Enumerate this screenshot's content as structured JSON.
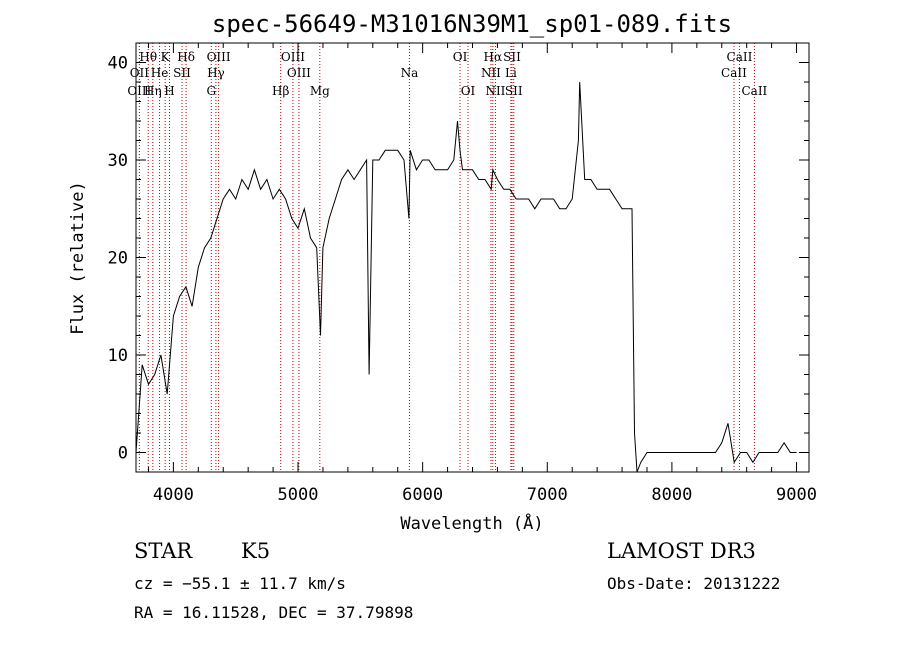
{
  "chart_data": {
    "type": "line",
    "title": "spec-56649-M31016N39M1_sp01-089.fits",
    "xlabel": "Wavelength (Å)",
    "ylabel": "Flux (relative)",
    "xlim": [
      3700,
      9100
    ],
    "ylim": [
      -2,
      42
    ],
    "xticks": [
      4000,
      5000,
      6000,
      7000,
      8000,
      9000
    ],
    "yticks": [
      0,
      10,
      20,
      30,
      40
    ],
    "line_color": "#000000",
    "marker_color": "#c00000",
    "series": [
      {
        "x": [
          3700,
          3750,
          3800,
          3850,
          3900,
          3950,
          4000,
          4050,
          4100,
          4150,
          4200,
          4250,
          4300,
          4350,
          4400,
          4450,
          4500,
          4550,
          4600,
          4650,
          4700,
          4750,
          4800,
          4850,
          4900,
          4950,
          5000,
          5050,
          5100,
          5150,
          5180,
          5200,
          5250,
          5300,
          5350,
          5400,
          5450,
          5500,
          5550,
          5570,
          5600,
          5650,
          5700,
          5750,
          5800,
          5850,
          5890,
          5900,
          5950,
          6000,
          6050,
          6100,
          6150,
          6200,
          6250,
          6280,
          6300,
          6320,
          6350,
          6400,
          6450,
          6500,
          6550,
          6563,
          6600,
          6650,
          6700,
          6750,
          6800,
          6850,
          6900,
          6950,
          7000,
          7050,
          7100,
          7150,
          7200,
          7250,
          7260,
          7300,
          7350,
          7400,
          7450,
          7500,
          7550,
          7600,
          7650,
          7680,
          7700,
          7720,
          7750,
          7800,
          7850,
          7900,
          7950,
          8000,
          8050,
          8100,
          8150,
          8200,
          8250,
          8300,
          8350,
          8400,
          8450,
          8500,
          8550,
          8600,
          8650,
          8700,
          8750,
          8800,
          8850,
          8900,
          8950,
          9000
        ],
        "y": [
          0,
          9,
          7,
          8,
          10,
          6,
          14,
          16,
          17,
          15,
          19,
          21,
          22,
          24,
          26,
          27,
          26,
          28,
          27,
          29,
          27,
          28,
          26,
          27,
          26,
          24,
          23,
          25,
          22,
          21,
          12,
          21,
          24,
          26,
          28,
          29,
          28,
          29,
          30,
          8,
          30,
          30,
          31,
          31,
          31,
          30,
          24,
          31,
          29,
          30,
          30,
          29,
          29,
          29,
          30,
          34,
          31,
          29,
          29,
          29,
          28,
          28,
          27,
          29,
          28,
          27,
          27,
          26,
          26,
          26,
          25,
          26,
          26,
          26,
          25,
          25,
          26,
          32,
          38,
          28,
          28,
          27,
          27,
          27,
          26,
          25,
          25,
          25,
          2,
          -2,
          -1,
          0,
          0,
          0,
          0,
          0,
          0,
          0,
          0,
          0,
          0,
          0,
          0,
          1,
          3,
          -1,
          0,
          0,
          -1,
          0,
          0,
          0,
          0,
          1,
          0,
          0
        ]
      }
    ],
    "spectral_lines": [
      {
        "name": "Hθ",
        "wl": 3798,
        "row": 0
      },
      {
        "name": "OII",
        "wl": 3727,
        "row": 1
      },
      {
        "name": "OIII",
        "wl": 3727,
        "row": 2
      },
      {
        "name": "K",
        "wl": 3934,
        "row": 0
      },
      {
        "name": "Hη",
        "wl": 3835,
        "row": 2
      },
      {
        "name": "He",
        "wl": 3889,
        "row": 1
      },
      {
        "name": "H",
        "wl": 3969,
        "row": 2
      },
      {
        "name": "SII",
        "wl": 4069,
        "row": 1
      },
      {
        "name": "Hδ",
        "wl": 4102,
        "row": 0
      },
      {
        "name": "OIII",
        "wl": 4363,
        "row": 0
      },
      {
        "name": "Hγ",
        "wl": 4341,
        "row": 1
      },
      {
        "name": "G",
        "wl": 4304,
        "row": 2
      },
      {
        "name": "Hβ",
        "wl": 4861,
        "row": 2
      },
      {
        "name": "OIII",
        "wl": 4959,
        "row": 0
      },
      {
        "name": "OIII",
        "wl": 5007,
        "row": 1
      },
      {
        "name": "Mg",
        "wl": 5175,
        "row": 2
      },
      {
        "name": "Na",
        "wl": 5894,
        "row": 1
      },
      {
        "name": "OI",
        "wl": 6300,
        "row": 0
      },
      {
        "name": "OI",
        "wl": 6364,
        "row": 2
      },
      {
        "name": "Hα",
        "wl": 6563,
        "row": 0
      },
      {
        "name": "SII",
        "wl": 6717,
        "row": 0
      },
      {
        "name": "NII",
        "wl": 6548,
        "row": 1
      },
      {
        "name": "Li",
        "wl": 6708,
        "row": 1
      },
      {
        "name": "NII",
        "wl": 6584,
        "row": 2
      },
      {
        "name": "SII",
        "wl": 6731,
        "row": 2
      },
      {
        "name": "CaII",
        "wl": 8542,
        "row": 0
      },
      {
        "name": "CaII",
        "wl": 8498,
        "row": 1
      },
      {
        "name": "CaII",
        "wl": 8662,
        "row": 2
      }
    ]
  },
  "info": {
    "object_class": "STAR",
    "subclass": "K5",
    "survey": "LAMOST DR3",
    "cz": "cz = −55.1 ± 11.7 km/s",
    "obs_date": "Obs-Date: 20131222",
    "coords": "RA =  16.11528, DEC =  37.79898"
  }
}
